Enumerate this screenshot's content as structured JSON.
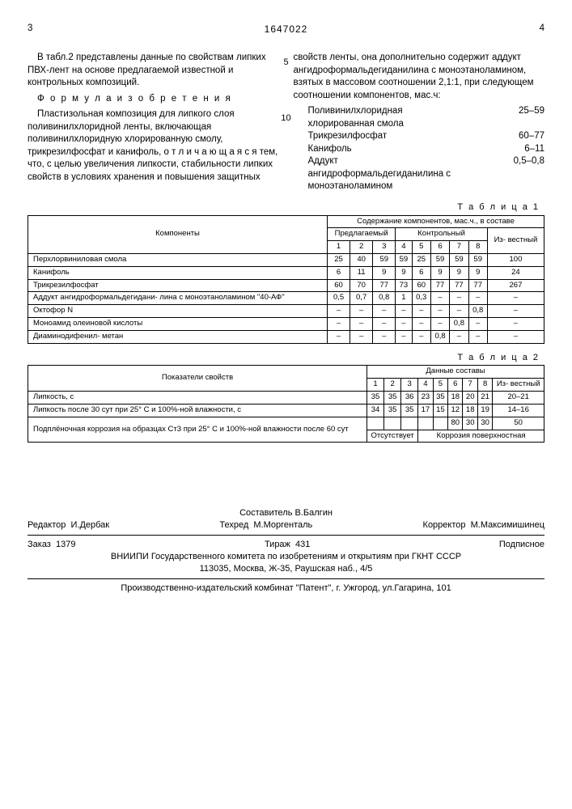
{
  "page": {
    "left_num": "3",
    "right_num": "4",
    "doc_number": "1647022"
  },
  "line_numbers": [
    "5",
    "10"
  ],
  "left_column": {
    "p1": "В табл.2 представлены данные по свойствам липких ПВХ-лент на основе предлагаемой известной и контрольных композиций.",
    "p2_head": "Ф о р м у л а  и з о б р е т е н и я",
    "p3": "Пластизольная композиция для липкого слоя поливинилхлоридной ленты, включающая поливинилхлоридную хлорированную смолу, трикрезилфосфат и канифоль, о т л и ч а ю щ а я с я тем, что, с целью увеличения липкости, стабильности липких свойств в условиях хранения и повышения защитных"
  },
  "right_column": {
    "p1": "свойств ленты, она дополнительно содержит аддукт ангидроформальдегиданилина с моноэтаноламином, взятых в массовом соотношении 2,1:1, при следующем соотношении компонентов, мас.ч:",
    "list": [
      {
        "lbl": "Поливинилхлоридная хлорированная смола",
        "val": "25–59"
      },
      {
        "lbl": "Трикрезилфосфат",
        "val": "60–77"
      },
      {
        "lbl": "Канифоль",
        "val": "6–11"
      },
      {
        "lbl": "Аддукт ангидроформальдегиданилина с моноэтаноламином",
        "val": "0,5–0,8"
      }
    ]
  },
  "table1": {
    "label": "Т а б л и ц а  1",
    "head": {
      "col1": "Компоненты",
      "group_top": "Содержание компонентов, мас.ч., в составе",
      "group_a": "Предлагаемый",
      "group_b": "Контрольный",
      "cols": [
        "1",
        "2",
        "3",
        "4",
        "5",
        "6",
        "7",
        "8"
      ],
      "last": "Из-\nвестный"
    },
    "rows": [
      {
        "lbl": "Перхлорвиниловая смола",
        "c": [
          "25",
          "40",
          "59",
          "59",
          "25",
          "59",
          "59",
          "59",
          "100"
        ]
      },
      {
        "lbl": "Канифоль",
        "c": [
          "6",
          "11",
          "9",
          "9",
          "6",
          "9",
          "9",
          "9",
          "24"
        ]
      },
      {
        "lbl": "Трикрезилфосфат",
        "c": [
          "60",
          "70",
          "77",
          "73",
          "60",
          "77",
          "77",
          "77",
          "267"
        ]
      },
      {
        "lbl": "Аддукт ангидроформальдегидани-\nлина с моноэтаноламином \"40-АФ\"",
        "c": [
          "0,5",
          "0,7",
          "0,8",
          "1",
          "0,3",
          "–",
          "–",
          "–",
          "–"
        ]
      },
      {
        "lbl": "Октофор N",
        "c": [
          "–",
          "–",
          "–",
          "–",
          "–",
          "–",
          "–",
          "0,8",
          "–"
        ]
      },
      {
        "lbl": "Моноамид олеиновой кислоты",
        "c": [
          "–",
          "–",
          "–",
          "–",
          "–",
          "–",
          "0,8",
          "–",
          "–"
        ]
      },
      {
        "lbl": "Диаминодифенил-\nметан",
        "c": [
          "–",
          "–",
          "–",
          "–",
          "–",
          "0,8",
          "–",
          "–",
          "–"
        ]
      }
    ]
  },
  "table2": {
    "label": "Т а б л и ц а  2",
    "head": {
      "col1": "Показатели свойств",
      "group_top": "Данные составы",
      "cols": [
        "1",
        "2",
        "3",
        "4",
        "5",
        "6",
        "7",
        "8"
      ],
      "last": "Из-\nвестный"
    },
    "rows": [
      {
        "lbl": "Липкость, с",
        "c": [
          "35",
          "35",
          "36",
          "23",
          "35",
          "18",
          "20",
          "21",
          "20–21"
        ]
      },
      {
        "lbl": "Липкость после 30 сут при 25° С и 100%-ной влажности, с",
        "c": [
          "34",
          "35",
          "35",
          "17",
          "15",
          "12",
          "18",
          "19",
          "14–16"
        ]
      },
      {
        "lbl": "Подплёночная коррозия на образцах Ст3 при 25° С и 100%-ной влажности после 60 сут",
        "c": [
          "",
          "",
          "",
          "",
          "",
          "80",
          "30",
          "30",
          "50"
        ]
      }
    ],
    "merged_left": "Отсутствует",
    "merged_right": "Коррозия поверхностная"
  },
  "footer": {
    "composer_lbl": "Составитель",
    "composer": "В.Балгин",
    "editor_lbl": "Редактор",
    "editor": "И.Дербак",
    "tehred_lbl": "Техред",
    "tehred": "М.Моргенталь",
    "corrector_lbl": "Корректор",
    "corrector": "М.Максимишинец",
    "order_lbl": "Заказ",
    "order": "1379",
    "tirazh_lbl": "Тираж",
    "tirazh": "431",
    "podpis": "Подписное",
    "org1": "ВНИИПИ Государственного комитета по изобретениям и открытиям при ГКНТ СССР",
    "org1addr": "113035, Москва, Ж-35, Раушская наб., 4/5",
    "org2": "Производственно-издательский комбинат \"Патент\", г. Ужгород, ул.Гагарина, 101"
  }
}
